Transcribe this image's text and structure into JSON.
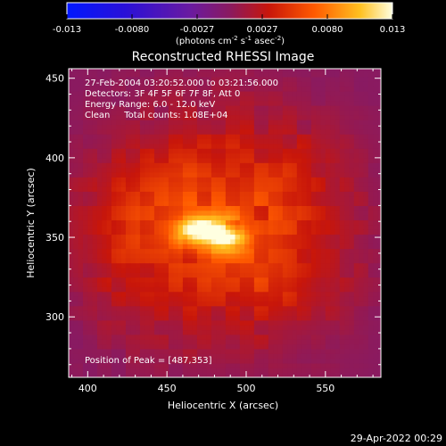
{
  "colorbar": {
    "tick_labels": [
      "-0.013",
      "-0.0080",
      "-0.0027",
      "0.0027",
      "0.0080",
      "0.013"
    ],
    "unit_prefix": "(photons cm",
    "unit_exp1": "-2",
    "unit_mid": " s",
    "unit_exp2": "-1",
    "unit_mid2": " asec",
    "unit_exp3": "-2",
    "unit_suffix": ")",
    "range": [
      -0.013,
      0.013
    ]
  },
  "plot": {
    "title": "Reconstructed RHESSI Image",
    "info_lines": [
      "27-Feb-2004 03:20:52.000 to 03:21:56.000",
      "Detectors: 3F 4F 5F 6F 7F 8F, Att 0",
      "Energy Range: 6.0 - 12.0 keV",
      "Clean     Total counts: 1.08E+04"
    ],
    "peak_label": "Position of Peak = [487,353]",
    "footer_timestamp": "29-Apr-2022 00:29"
  },
  "chart_data": {
    "type": "heatmap",
    "title": "Reconstructed RHESSI Image",
    "xlabel": "Heliocentric X (arcsec)",
    "ylabel": "Heliocentric Y (arcsec)",
    "xlim": [
      388,
      585
    ],
    "ylim": [
      262,
      456
    ],
    "x_ticks": [
      400,
      450,
      500,
      550
    ],
    "y_ticks": [
      300,
      350,
      400,
      450
    ],
    "x_tick_labels": [
      "400",
      "450",
      "500",
      "550"
    ],
    "y_tick_labels": [
      "300",
      "350",
      "400",
      "450"
    ],
    "value_range": [
      -0.013,
      0.013
    ],
    "colormap": "rhessi-heat (blue-purple-red-orange-yellow-white)",
    "peak_position": [
      487,
      353
    ],
    "peak_value": 0.013,
    "source_blobs": [
      {
        "x": 476,
        "y": 353,
        "sx": 13,
        "sy": 7,
        "amp": 0.0085
      },
      {
        "x": 490,
        "y": 349,
        "sx": 7,
        "sy": 5,
        "amp": 0.0045
      },
      {
        "x": 466,
        "y": 356,
        "sx": 6,
        "sy": 4,
        "amp": 0.003
      },
      {
        "x": 482,
        "y": 358,
        "sx": 55,
        "sy": 50,
        "amp": 0.0048
      },
      {
        "x": 450,
        "y": 372,
        "sx": 28,
        "sy": 22,
        "amp": 0.0016
      },
      {
        "x": 515,
        "y": 330,
        "sx": 30,
        "sy": 28,
        "amp": 0.0016
      },
      {
        "x": 422,
        "y": 338,
        "sx": 18,
        "sy": 28,
        "amp": 0.0012
      },
      {
        "x": 528,
        "y": 395,
        "sx": 20,
        "sy": 18,
        "amp": 0.0012
      }
    ]
  }
}
